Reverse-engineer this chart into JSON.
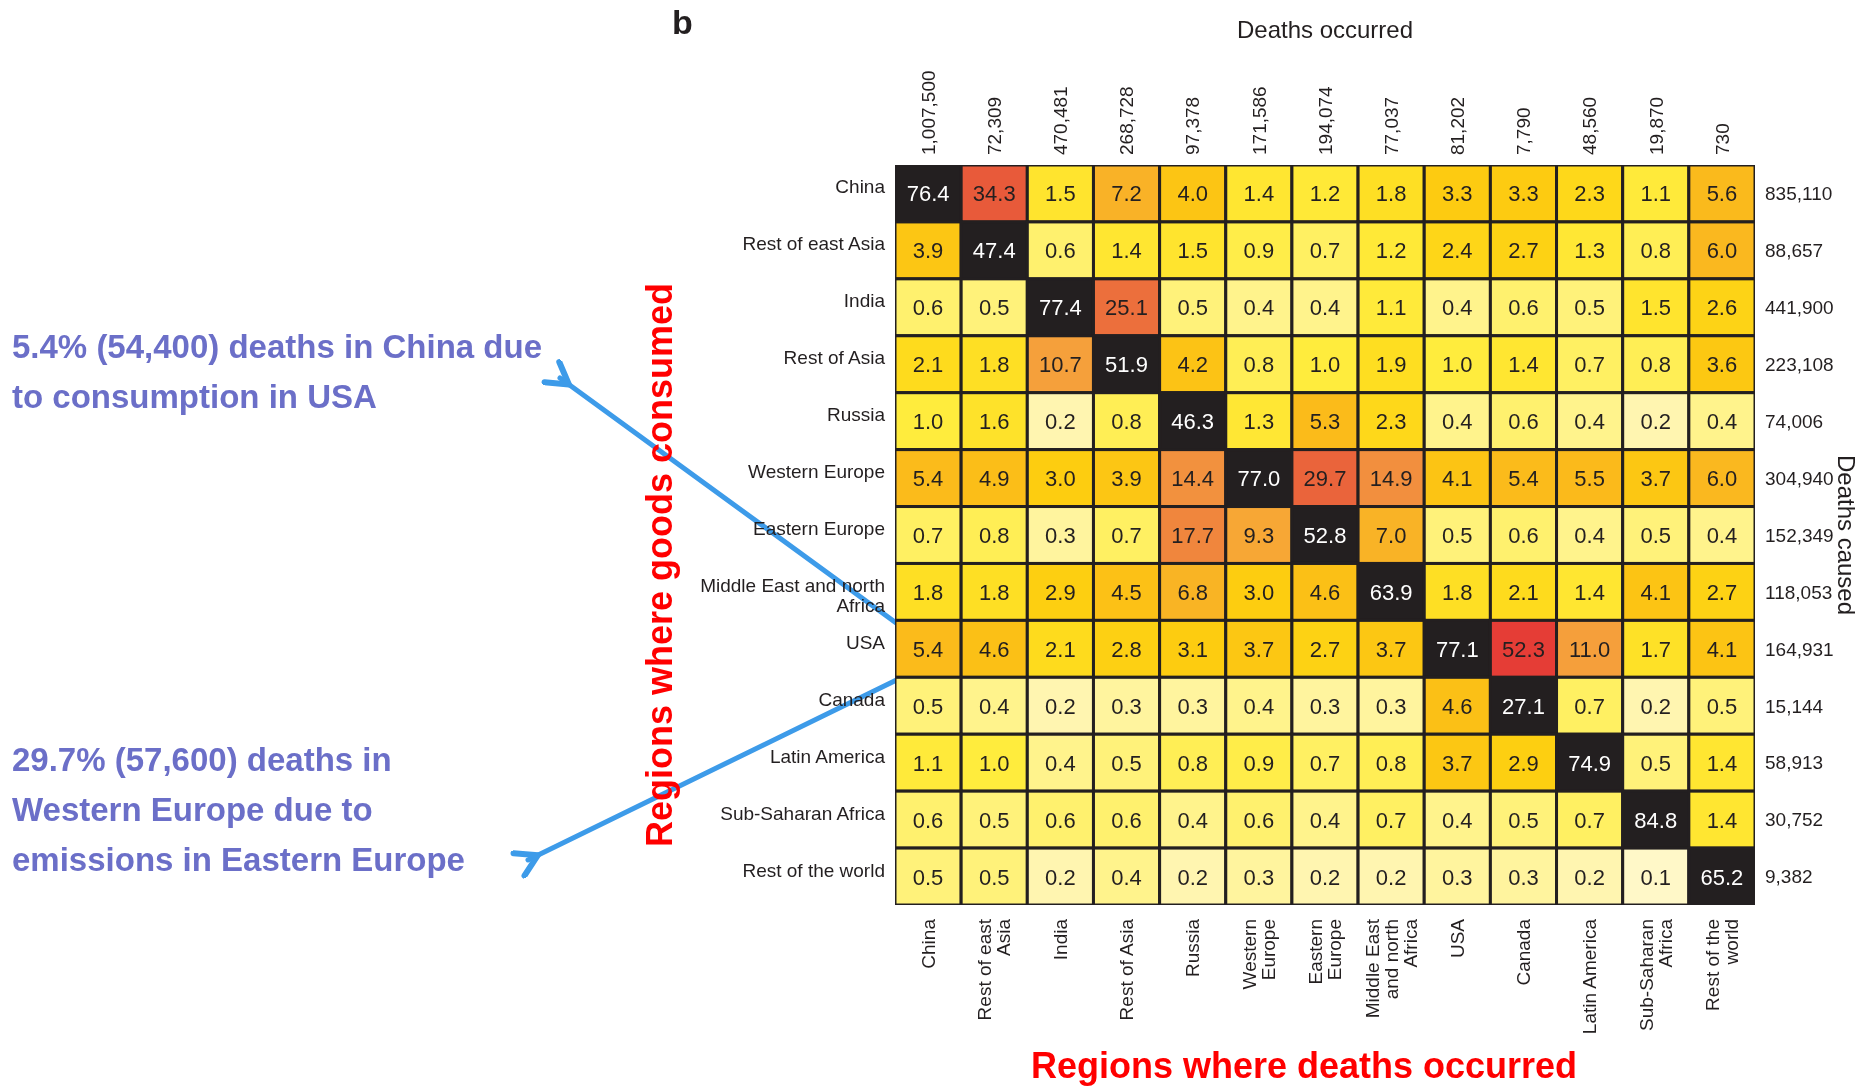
{
  "chart_data": {
    "type": "heatmap",
    "title": "b",
    "x2label": "Deaths occurred",
    "xlabel": "Regions where deaths occurred",
    "ylabel": "Regions where goods consumed",
    "y2label": "Deaths caused",
    "data_labels": true,
    "categories": [
      "China",
      "Rest of east Asia",
      "India",
      "Rest of Asia",
      "Russia",
      "Western Europe",
      "Eastern Europe",
      "Middle East and north Africa",
      "USA",
      "Canada",
      "Latin America",
      "Sub-Saharan Africa",
      "Rest of the world"
    ],
    "y_categories": [
      "China",
      "Rest of east Asia",
      "India",
      "Rest of Asia",
      "Russia",
      "Western Europe",
      "Eastern Europe",
      "Middle East and north Africa",
      "USA",
      "Canada",
      "Latin America",
      "Sub-Saharan Africa",
      "Rest of the world"
    ],
    "y2_categories": [
      "835,110",
      "88,657",
      "441,900",
      "223,108",
      "74,006",
      "304,940",
      "152,349",
      "118,053",
      "164,931",
      "15,144",
      "58,913",
      "30,752",
      "9,382"
    ],
    "cells": [
      [
        76.4,
        34.3,
        1.5,
        7.2,
        4.0,
        1.4,
        1.2,
        1.8,
        3.3,
        3.3,
        2.3,
        1.1,
        5.6
      ],
      [
        3.9,
        47.4,
        0.6,
        1.4,
        1.5,
        0.9,
        0.7,
        1.2,
        2.4,
        2.7,
        1.3,
        0.8,
        6.0
      ],
      [
        0.6,
        0.5,
        77.4,
        25.1,
        0.5,
        0.4,
        0.4,
        1.1,
        0.4,
        0.6,
        0.5,
        1.5,
        2.6
      ],
      [
        2.1,
        1.8,
        10.7,
        51.9,
        4.2,
        0.8,
        1.0,
        1.9,
        1.0,
        1.4,
        0.7,
        0.8,
        3.6
      ],
      [
        1.0,
        1.6,
        0.2,
        0.8,
        46.3,
        1.3,
        5.3,
        2.3,
        0.4,
        0.6,
        0.4,
        0.2,
        0.4
      ],
      [
        5.4,
        4.9,
        3.0,
        3.9,
        14.4,
        77.0,
        29.7,
        14.9,
        4.1,
        5.4,
        5.5,
        3.7,
        6.0
      ],
      [
        0.7,
        0.8,
        0.3,
        0.7,
        17.7,
        9.3,
        52.8,
        7.0,
        0.5,
        0.6,
        0.4,
        0.5,
        0.4
      ],
      [
        1.8,
        1.8,
        2.9,
        4.5,
        6.8,
        3.0,
        4.6,
        63.9,
        1.8,
        2.1,
        1.4,
        4.1,
        2.7
      ],
      [
        5.4,
        4.6,
        2.1,
        2.8,
        3.1,
        3.7,
        2.7,
        3.7,
        77.1,
        52.3,
        11.0,
        1.7,
        4.1
      ],
      [
        0.5,
        0.4,
        0.2,
        0.3,
        0.3,
        0.4,
        0.3,
        0.3,
        4.6,
        27.1,
        0.7,
        0.2,
        0.5
      ],
      [
        1.1,
        1.0,
        0.4,
        0.5,
        0.8,
        0.9,
        0.7,
        0.8,
        3.7,
        2.9,
        74.9,
        0.5,
        1.4
      ],
      [
        0.6,
        0.5,
        0.6,
        0.6,
        0.4,
        0.6,
        0.4,
        0.7,
        0.4,
        0.5,
        0.7,
        84.8,
        1.4
      ],
      [
        0.5,
        0.5,
        0.2,
        0.4,
        0.2,
        0.3,
        0.2,
        0.2,
        0.3,
        0.3,
        0.2,
        0.1,
        65.2
      ]
    ],
    "cell_labels": [
      [
        "76.4",
        "34.3",
        "1.5",
        "7.2",
        "4.0",
        "1.4",
        "1.2",
        "1.8",
        "3.3",
        "3.3",
        "2.3",
        "1.1",
        "5.6"
      ],
      [
        "3.9",
        "47.4",
        "0.6",
        "1.4",
        "1.5",
        "0.9",
        "0.7",
        "1.2",
        "2.4",
        "2.7",
        "1.3",
        "0.8",
        "6.0"
      ],
      [
        "0.6",
        "0.5",
        "77.4",
        "25.1",
        "0.5",
        "0.4",
        "0.4",
        "1.1",
        "0.4",
        "0.6",
        "0.5",
        "1.5",
        "2.6"
      ],
      [
        "2.1",
        "1.8",
        "10.7",
        "51.9",
        "4.2",
        "0.8",
        "1.0",
        "1.9",
        "1.0",
        "1.4",
        "0.7",
        "0.8",
        "3.6"
      ],
      [
        "1.0",
        "1.6",
        "0.2",
        "0.8",
        "46.3",
        "1.3",
        "5.3",
        "2.3",
        "0.4",
        "0.6",
        "0.4",
        "0.2",
        "0.4"
      ],
      [
        "5.4",
        "4.9",
        "3.0",
        "3.9",
        "14.4",
        "77.0",
        "29.7",
        "14.9",
        "4.1",
        "5.4",
        "5.5",
        "3.7",
        "6.0"
      ],
      [
        "0.7",
        "0.8",
        "0.3",
        "0.7",
        "17.7",
        "9.3",
        "52.8",
        "7.0",
        "0.5",
        "0.6",
        "0.4",
        "0.5",
        "0.4"
      ],
      [
        "1.8",
        "1.8",
        "2.9",
        "4.5",
        "6.8",
        "3.0",
        "4.6",
        "63.9",
        "1.8",
        "2.1",
        "1.4",
        "4.1",
        "2.7"
      ],
      [
        "5.4",
        "4.6",
        "2.1",
        "2.8",
        "3.1",
        "3.7",
        "2.7",
        "3.7",
        "77.1",
        "52.3",
        "11.0",
        "1.7",
        "4.1"
      ],
      [
        "0.5",
        "0.4",
        "0.2",
        "0.3",
        "0.3",
        "0.4",
        "0.3",
        "0.3",
        "4.6",
        "27.1",
        "0.7",
        "0.2",
        "0.5"
      ],
      [
        "1.1",
        "1.0",
        "0.4",
        "0.5",
        "0.8",
        "0.9",
        "0.7",
        "0.8",
        "3.7",
        "2.9",
        "74.9",
        "0.5",
        "1.4"
      ],
      [
        "0.6",
        "0.5",
        "0.6",
        "0.6",
        "0.4",
        "0.6",
        "0.4",
        "0.7",
        "0.4",
        "0.5",
        "0.7",
        "84.8",
        "1.4"
      ],
      [
        "0.5",
        "0.5",
        "0.2",
        "0.4",
        "0.2",
        "0.3",
        "0.2",
        "0.2",
        "0.3",
        "0.3",
        "0.2",
        "0.1",
        "65.2"
      ]
    ],
    "annotations": [
      "5.4% (54,400) deaths in China due to consumption in USA",
      "29.7% (57,600) deaths in Western Europe due to emissions in Eastern Europe",
      "1,007,500",
      "72,309",
      "470,481",
      "268,728",
      "97,378",
      "171,586",
      "194,074",
      "77,037",
      "81,202",
      "7,790",
      "48,560",
      "19,870",
      "730"
    ]
  }
}
